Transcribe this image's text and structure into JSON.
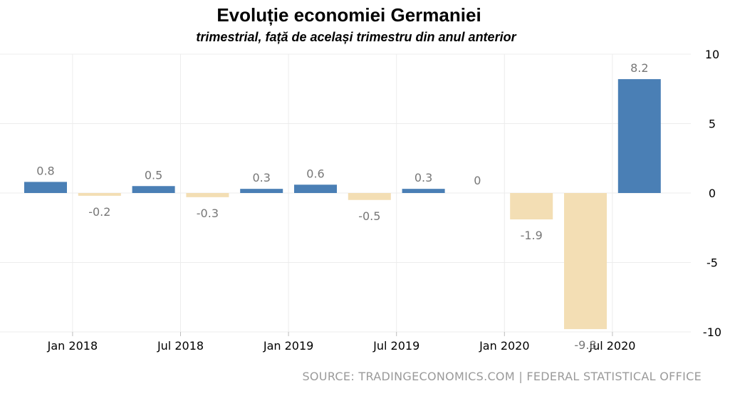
{
  "header": {
    "title": "Evoluție economiei Germaniei",
    "subtitle": "trimestrial, față de același trimestru din anul anterior"
  },
  "source": "SOURCE: TRADINGECONOMICS.COM | FEDERAL STATISTICAL OFFICE",
  "chart_data": {
    "type": "bar",
    "categories": [
      "Q1 2018",
      "Q2 2018",
      "Q3 2018",
      "Q4 2018",
      "Q1 2019",
      "Q2 2019",
      "Q3 2019",
      "Q4 2019",
      "Q1 2020",
      "Q2 2020",
      "Q3 2020",
      "Q4 2020"
    ],
    "values": [
      0.8,
      -0.2,
      0.5,
      -0.3,
      0.3,
      0.6,
      -0.5,
      0.3,
      0,
      -1.9,
      -9.8,
      8.2
    ],
    "value_labels": [
      "0.8",
      "-0.2",
      "0.5",
      "-0.3",
      "0.3",
      "0.6",
      "-0.5",
      "0.3",
      "0",
      "-1.9",
      "-9.8",
      "8.2"
    ],
    "x_tick_labels": [
      "Jan 2018",
      "Jul 2018",
      "Jan 2019",
      "Jul 2019",
      "Jan 2020",
      "Jul 2020"
    ],
    "y_ticks": [
      10,
      5,
      0,
      -5,
      -10
    ],
    "ylim": [
      -10,
      10
    ],
    "y_axis_position": "right",
    "grid": true,
    "colors": {
      "positive": "#4a7fb5",
      "negative": "#f3deb4",
      "label": "#777777",
      "grid": "#ececec"
    }
  }
}
